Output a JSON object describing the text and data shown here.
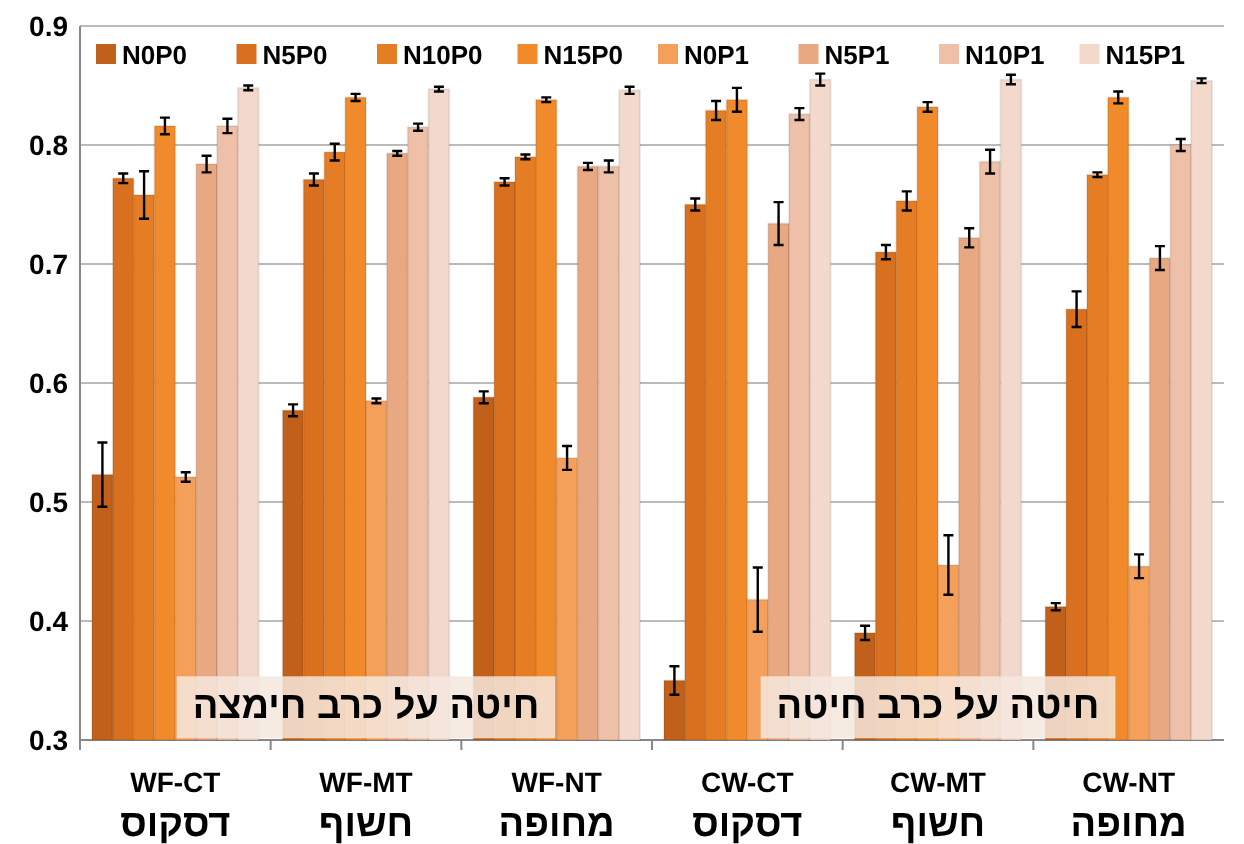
{
  "chart_data": {
    "type": "bar",
    "categories": [
      "WF-CT\nדסקוס",
      "WF-MT\nחשוף",
      "WF-NT\nמחופה",
      "CW-CT\nדסקוס",
      "CW-MT\nחשוף",
      "CW-NT\nמחופה"
    ],
    "series": [
      {
        "name": "N0P0",
        "color": "#c0601a",
        "values": [
          0.523,
          0.577,
          0.588,
          0.35,
          0.39,
          0.412
        ],
        "errors": [
          0.027,
          0.005,
          0.005,
          0.012,
          0.006,
          0.003
        ]
      },
      {
        "name": "N5P0",
        "color": "#d8701f",
        "values": [
          0.772,
          0.771,
          0.769,
          0.75,
          0.71,
          0.662
        ],
        "errors": [
          0.004,
          0.005,
          0.003,
          0.005,
          0.006,
          0.015
        ]
      },
      {
        "name": "N10P0",
        "color": "#e57d25",
        "values": [
          0.758,
          0.794,
          0.79,
          0.829,
          0.753,
          0.775
        ],
        "errors": [
          0.02,
          0.007,
          0.002,
          0.008,
          0.008,
          0.002
        ]
      },
      {
        "name": "N15P0",
        "color": "#f08a2a",
        "values": [
          0.816,
          0.84,
          0.838,
          0.838,
          0.832,
          0.84
        ],
        "errors": [
          0.007,
          0.003,
          0.002,
          0.01,
          0.004,
          0.005
        ]
      },
      {
        "name": "N0P1",
        "color": "#f5a05a",
        "values": [
          0.521,
          0.585,
          0.537,
          0.418,
          0.447,
          0.446
        ],
        "errors": [
          0.004,
          0.002,
          0.01,
          0.027,
          0.025,
          0.01
        ]
      },
      {
        "name": "N5P1",
        "color": "#e8a882",
        "values": [
          0.784,
          0.793,
          0.782,
          0.734,
          0.722,
          0.705
        ],
        "errors": [
          0.007,
          0.002,
          0.003,
          0.018,
          0.008,
          0.01
        ]
      },
      {
        "name": "N10P1",
        "color": "#eec0a8",
        "values": [
          0.816,
          0.815,
          0.782,
          0.826,
          0.786,
          0.8
        ],
        "errors": [
          0.006,
          0.003,
          0.005,
          0.005,
          0.01,
          0.005
        ]
      },
      {
        "name": "N15P1",
        "color": "#f3d8cc",
        "values": [
          0.848,
          0.847,
          0.846,
          0.855,
          0.855,
          0.854
        ],
        "errors": [
          0.002,
          0.002,
          0.003,
          0.005,
          0.004,
          0.002
        ]
      }
    ],
    "ylim": [
      0.3,
      0.9
    ],
    "yticks": [
      0.3,
      0.4,
      0.5,
      0.6,
      0.7,
      0.8,
      0.9
    ],
    "grid": "y",
    "legend": "top",
    "annotations": [
      {
        "text": "חיטה על כרב חימצה",
        "x": "WF-MT\nחשוף",
        "y": 0.33
      },
      {
        "text": "חיטה על כרב חיטה",
        "x": "CW-MT\nחשוף",
        "y": 0.33
      }
    ]
  }
}
